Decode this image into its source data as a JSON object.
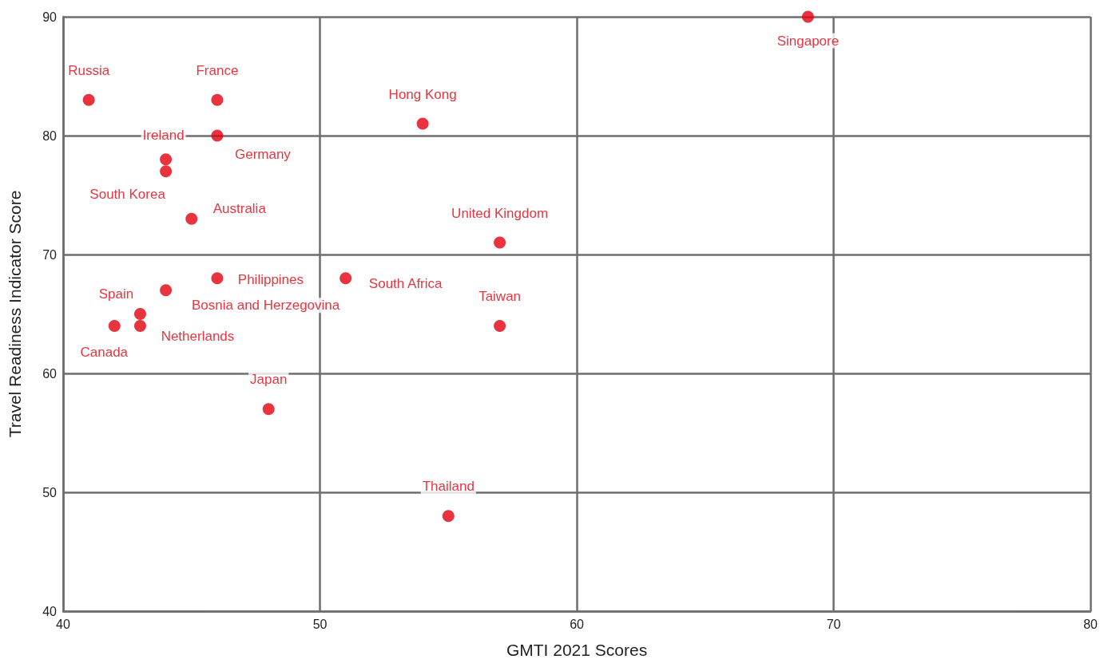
{
  "chart_data": {
    "type": "scatter",
    "xlabel": "GMTI 2021 Scores",
    "ylabel": "Travel Readiness Indicator Score",
    "x": [
      41,
      46,
      44,
      46,
      44,
      45,
      54,
      69,
      57,
      46,
      51,
      44,
      43,
      43,
      42,
      57,
      48,
      55
    ],
    "series": [
      {
        "color": "#e3000f",
        "values": [
          83,
          83,
          78,
          80,
          77,
          73,
          81,
          90,
          71,
          68,
          68,
          67,
          65,
          64,
          64,
          64,
          57,
          48
        ]
      }
    ],
    "annotations": [
      {
        "text": "Russia",
        "x": 41,
        "y": 83
      },
      {
        "text": "France",
        "x": 46,
        "y": 83
      },
      {
        "text": "Ireland",
        "x": 44,
        "y": 78
      },
      {
        "text": "Germany",
        "x": 46,
        "y": 80
      },
      {
        "text": "South Korea",
        "x": 44,
        "y": 77
      },
      {
        "text": "Australia",
        "x": 45,
        "y": 73
      },
      {
        "text": "Hong Kong",
        "x": 54,
        "y": 81
      },
      {
        "text": "Singapore",
        "x": 69,
        "y": 90
      },
      {
        "text": "United Kingdom",
        "x": 57,
        "y": 71
      },
      {
        "text": "Philippines",
        "x": 46,
        "y": 68
      },
      {
        "text": "South Africa",
        "x": 51,
        "y": 68
      },
      {
        "text": "Bosnia and Herzegovina",
        "x": 44,
        "y": 67
      },
      {
        "text": "Spain",
        "x": 43,
        "y": 65
      },
      {
        "text": "Netherlands",
        "x": 43,
        "y": 64
      },
      {
        "text": "Canada",
        "x": 42,
        "y": 64
      },
      {
        "text": "Taiwan",
        "x": 57,
        "y": 64
      },
      {
        "text": "Japan",
        "x": 48,
        "y": 57
      },
      {
        "text": "Thailand",
        "x": 55,
        "y": 48
      }
    ],
    "xlim": [
      40,
      80
    ],
    "xticks": [
      40,
      50,
      60,
      70,
      80
    ],
    "ylim": [
      40,
      90
    ],
    "yticks": [
      40,
      50,
      60,
      70,
      80,
      90
    ],
    "grid": true,
    "marker": "circle"
  }
}
